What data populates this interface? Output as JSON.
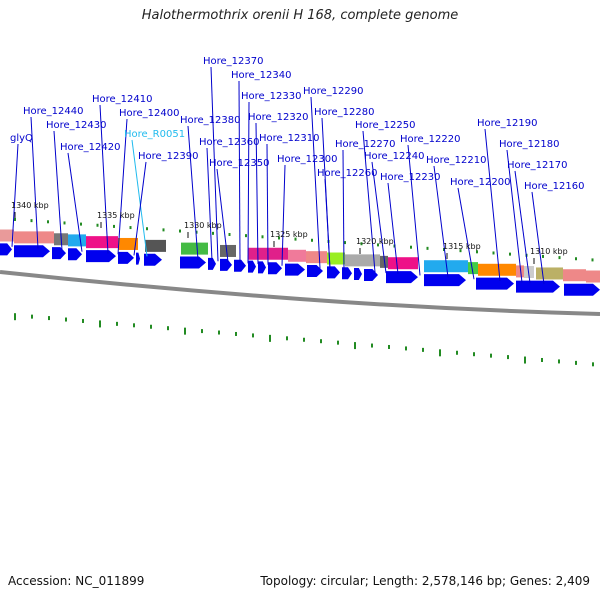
{
  "title": "Halothermothrix orenii H 168, complete genome",
  "footer": {
    "accession": "Accession: NC_011899",
    "summary": "Topology: circular; Length: 2,578,146 bp; Genes: 2,409"
  },
  "colors": {
    "gene_label": "#0000cc",
    "rna_label": "#22bbee",
    "gene_arrow": "#0000ee",
    "backbone": "#888888",
    "tick": "#228b22"
  },
  "ruler": [
    "1340 kbp",
    "1335 kbp",
    "1330 kbp",
    "1325 kbp",
    "1320 kbp",
    "1315 kbp",
    "1310 kbp"
  ],
  "genes": [
    {
      "name": "glyQ",
      "type": "gene"
    },
    {
      "name": "Hore_12440",
      "type": "gene"
    },
    {
      "name": "Hore_12430",
      "type": "gene"
    },
    {
      "name": "Hore_12420",
      "type": "gene"
    },
    {
      "name": "Hore_12410",
      "type": "gene"
    },
    {
      "name": "Hore_12400",
      "type": "gene"
    },
    {
      "name": "Hore_R0051",
      "type": "rna"
    },
    {
      "name": "Hore_12390",
      "type": "gene"
    },
    {
      "name": "Hore_12380",
      "type": "gene"
    },
    {
      "name": "Hore_12370",
      "type": "gene"
    },
    {
      "name": "Hore_12360",
      "type": "gene"
    },
    {
      "name": "Hore_12350",
      "type": "gene"
    },
    {
      "name": "Hore_12340",
      "type": "gene"
    },
    {
      "name": "Hore_12330",
      "type": "gene"
    },
    {
      "name": "Hore_12320",
      "type": "gene"
    },
    {
      "name": "Hore_12310",
      "type": "gene"
    },
    {
      "name": "Hore_12300",
      "type": "gene"
    },
    {
      "name": "Hore_12290",
      "type": "gene"
    },
    {
      "name": "Hore_12280",
      "type": "gene"
    },
    {
      "name": "Hore_12270",
      "type": "gene"
    },
    {
      "name": "Hore_12260",
      "type": "gene"
    },
    {
      "name": "Hore_12250",
      "type": "gene"
    },
    {
      "name": "Hore_12240",
      "type": "gene"
    },
    {
      "name": "Hore_12230",
      "type": "gene"
    },
    {
      "name": "Hore_12220",
      "type": "gene"
    },
    {
      "name": "Hore_12210",
      "type": "gene"
    },
    {
      "name": "Hore_12200",
      "type": "gene"
    },
    {
      "name": "Hore_12190",
      "type": "gene"
    },
    {
      "name": "Hore_12180",
      "type": "gene"
    },
    {
      "name": "Hore_12170",
      "type": "gene"
    },
    {
      "name": "Hore_12160",
      "type": "gene"
    }
  ],
  "cog_colors": [
    "#e99a9a",
    "#ee8888",
    "#777777",
    "#22aaee",
    "#ee1188",
    "#ff8800",
    "#555555",
    "#44bb44",
    "#666666",
    "#e0208a",
    "#f07a9a",
    "#ee8888",
    "#99ee22",
    "#aaaaaa",
    "#666666",
    "#ee1188",
    "#22aaee",
    "#44cc44",
    "#ff8800",
    "#ee8888",
    "#cccccc",
    "#bbb066",
    "#ee8888",
    "#ee8888"
  ]
}
